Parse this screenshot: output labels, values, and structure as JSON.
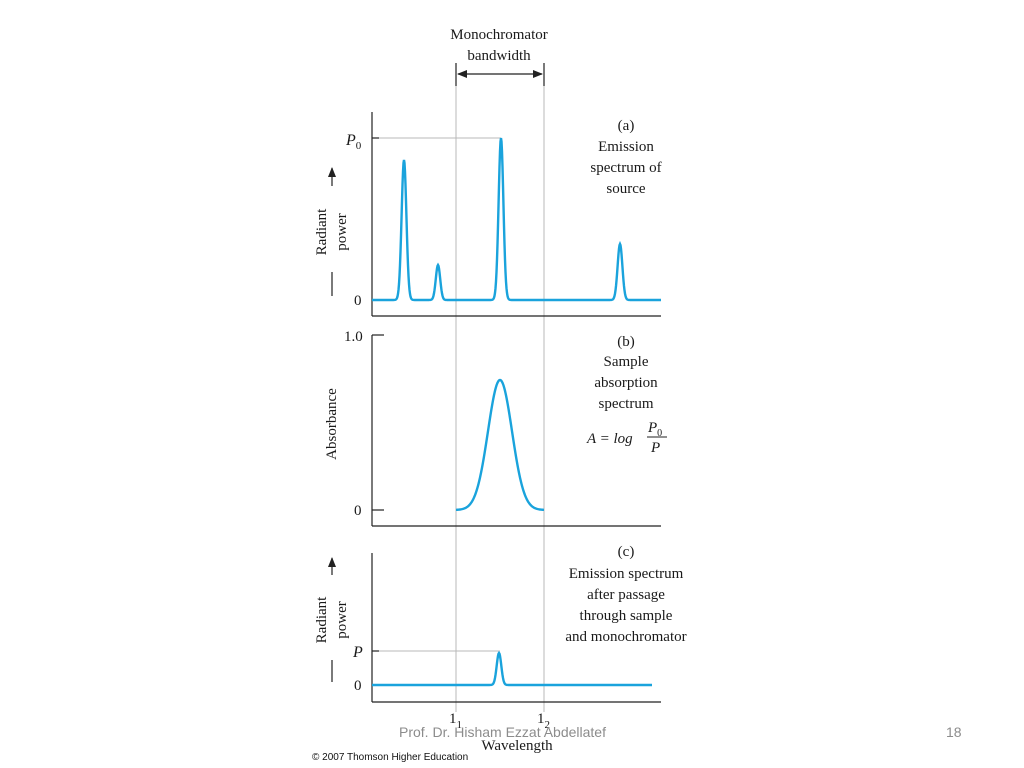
{
  "bandwidth": {
    "line1": "Monochromator",
    "line2": "bandwidth"
  },
  "panel_a": {
    "letter": "(a)",
    "caption": [
      "Emission",
      "spectrum of",
      "source"
    ],
    "y_label_1": "Radiant",
    "y_label_2": "power",
    "tick_top": "P",
    "tick_top_sub": "0",
    "tick_zero": "0"
  },
  "panel_b": {
    "letter": "(b)",
    "caption": [
      "Sample",
      "absorption",
      "spectrum"
    ],
    "y_label": "Absorbance",
    "tick_top": "1.0",
    "tick_zero": "0",
    "formula_lhs": "A = log",
    "formula_num": "P",
    "formula_num_sub": "0",
    "formula_den": "P"
  },
  "panel_c": {
    "letter": "(c)",
    "caption": [
      "Emission spectrum",
      "after passage",
      "through sample",
      "and monochromator"
    ],
    "y_label_1": "Radiant",
    "y_label_2": "power",
    "tick_p": "P",
    "tick_zero": "0"
  },
  "x_axis": {
    "label": "Wavelength",
    "lambda1": "1",
    "lambda1_sub": "1",
    "lambda2": "1",
    "lambda2_sub": "2"
  },
  "footer": {
    "author": "Prof. Dr. Hisham Ezzat Abdellatef",
    "page_number": "18"
  },
  "copyright": "© 2007 Thomson Higher Education",
  "colors": {
    "curve": "#1aa3dc",
    "axis": "#222222",
    "guide": "#b8b8b8"
  }
}
